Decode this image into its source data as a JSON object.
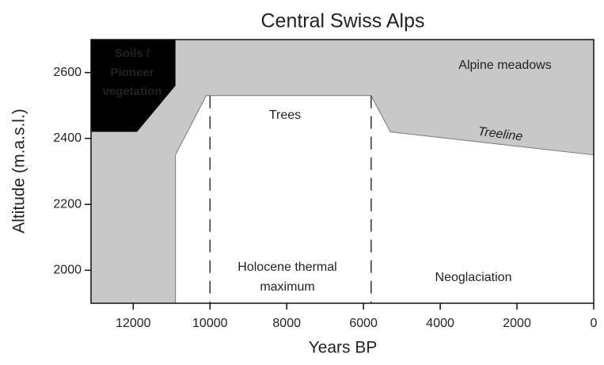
{
  "chart_data": {
    "type": "area",
    "title": "Central Swiss Alps",
    "x_label": "Years BP",
    "y_label": "Altitude (m.a.s.l.)",
    "xlim": [
      13100,
      0
    ],
    "ylim": [
      1900,
      2700
    ],
    "xticks": [
      12000,
      10000,
      8000,
      6000,
      4000,
      2000,
      0
    ],
    "yticks": [
      2000,
      2200,
      2400,
      2600
    ],
    "background_color": "#c8c8c8",
    "series": [
      {
        "name": "Treeline",
        "color": "#ffffff",
        "x": [
          10900,
          10900,
          10100,
          5800,
          5300,
          0
        ],
        "values": [
          1900,
          2350,
          2530,
          2530,
          2420,
          2350
        ]
      },
      {
        "name": "Soils / Pioneer vegetation",
        "color": "#000000",
        "x": [
          13100,
          11900,
          10900,
          10900
        ],
        "values": [
          2420,
          2420,
          2560,
          2700
        ]
      }
    ],
    "vlines": [
      10000,
      5800
    ],
    "annotations": [
      {
        "lines": [
          "Soils /",
          "Pioneer",
          "vegetation"
        ]
      },
      {
        "lines": [
          "Alpine meadows"
        ]
      },
      {
        "lines": [
          "Trees"
        ]
      },
      {
        "lines": [
          "Holocene thermal",
          "maximum"
        ]
      },
      {
        "lines": [
          "Neoglaciation"
        ]
      }
    ]
  }
}
